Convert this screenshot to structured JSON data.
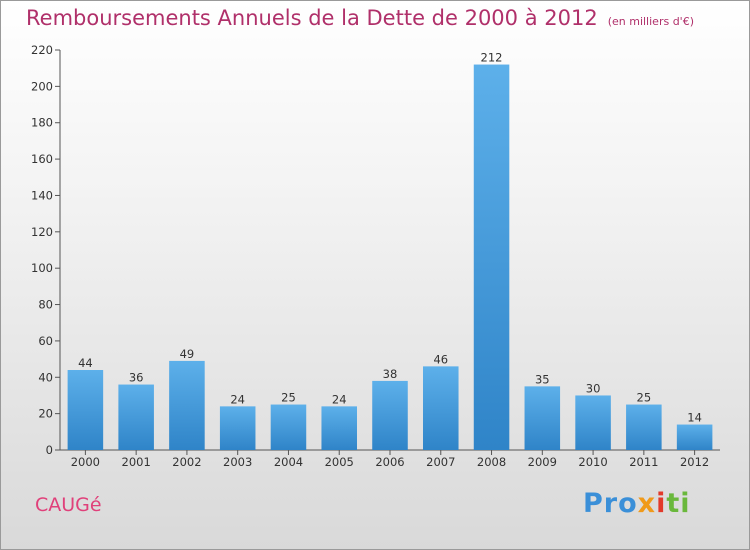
{
  "chart_data": {
    "type": "bar",
    "title": "Remboursements Annuels de la Dette de 2000 à 2012",
    "subtitle": "(en milliers d'€)",
    "categories": [
      "2000",
      "2001",
      "2002",
      "2003",
      "2004",
      "2005",
      "2006",
      "2007",
      "2008",
      "2009",
      "2010",
      "2011",
      "2012"
    ],
    "values": [
      44,
      36,
      49,
      24,
      25,
      24,
      38,
      46,
      212,
      35,
      30,
      25,
      14
    ],
    "ylim": [
      0,
      220
    ],
    "yticks": [
      0,
      20,
      40,
      60,
      80,
      100,
      120,
      140,
      160,
      180,
      200,
      220
    ],
    "grid": false,
    "bar_color": "#3d94d6"
  },
  "location": "CAUGé",
  "logo": {
    "p1": "Pro",
    "p2": "x",
    "p3": "i",
    "p4": "ti"
  }
}
